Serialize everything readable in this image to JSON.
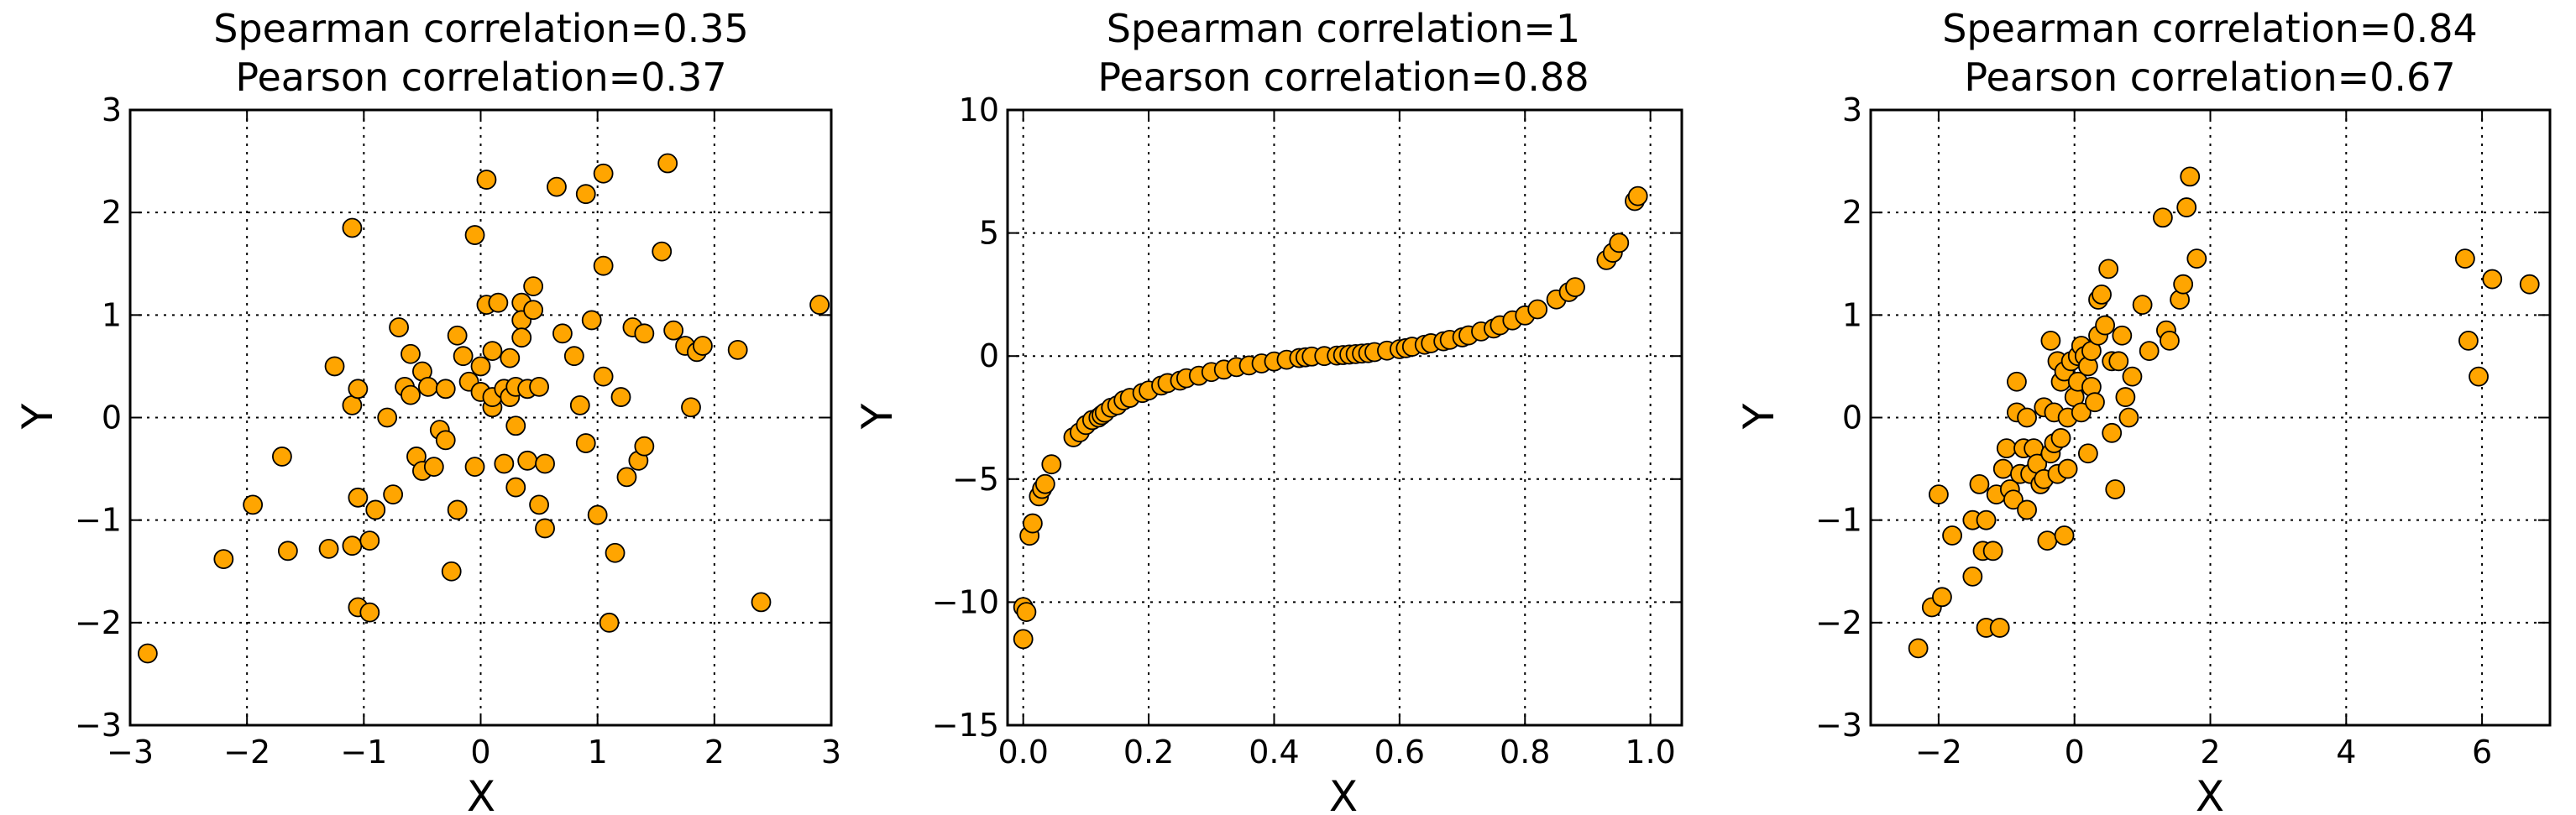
{
  "colors": {
    "marker_fill": "#ffa500",
    "marker_edge": "#000000",
    "grid": "#000000",
    "background": "#ffffff"
  },
  "chart_data": [
    {
      "type": "scatter",
      "title": [
        "Spearman correlation=0.35",
        "Pearson correlation=0.37"
      ],
      "xlabel": "X",
      "ylabel": "Y",
      "xlim": [
        -3,
        3
      ],
      "ylim": [
        -3,
        3
      ],
      "xticks": [
        -3,
        -2,
        -1,
        0,
        1,
        2,
        3
      ],
      "xtick_labels": [
        "−3",
        "−2",
        "−1",
        "0",
        "1",
        "2",
        "3"
      ],
      "yticks": [
        -3,
        -2,
        -1,
        0,
        1,
        2,
        3
      ],
      "ytick_labels": [
        "−3",
        "−2",
        "−1",
        "0",
        "1",
        "2",
        "3"
      ],
      "grid": true,
      "x": [
        -2.85,
        -2.2,
        -1.95,
        -1.7,
        -1.65,
        -1.3,
        -1.25,
        -1.1,
        -1.1,
        -1.05,
        -1.05,
        -1.1,
        -1.05,
        -0.95,
        -0.95,
        -0.9,
        -0.8,
        -0.75,
        -0.7,
        -0.65,
        -0.6,
        -0.6,
        -0.55,
        -0.5,
        -0.5,
        -0.45,
        -0.4,
        -0.35,
        -0.3,
        -0.3,
        -0.25,
        -0.2,
        -0.2,
        -0.15,
        -0.1,
        -0.05,
        -0.05,
        0.0,
        0.0,
        0.05,
        0.05,
        0.1,
        0.1,
        0.1,
        0.15,
        0.2,
        0.2,
        0.25,
        0.25,
        0.3,
        0.3,
        0.3,
        0.35,
        0.35,
        0.35,
        0.4,
        0.4,
        0.45,
        0.45,
        0.5,
        0.5,
        0.55,
        0.55,
        0.65,
        0.7,
        0.8,
        0.85,
        0.9,
        0.9,
        0.95,
        1.0,
        1.05,
        1.05,
        1.05,
        1.1,
        1.15,
        1.2,
        1.25,
        1.3,
        1.35,
        1.4,
        1.4,
        1.55,
        1.6,
        1.65,
        1.75,
        1.8,
        1.85,
        1.9,
        2.2,
        2.4,
        2.9
      ],
      "y": [
        -2.3,
        -1.38,
        -0.85,
        -0.38,
        -1.3,
        -1.28,
        0.5,
        0.12,
        1.85,
        -0.78,
        0.28,
        -1.25,
        -1.85,
        -1.2,
        -1.9,
        -0.9,
        0.0,
        -0.75,
        0.88,
        0.3,
        0.62,
        0.22,
        -0.38,
        -0.52,
        0.45,
        0.3,
        -0.48,
        -0.12,
        0.28,
        -0.22,
        -1.5,
        0.8,
        -0.9,
        0.6,
        0.35,
        -0.48,
        1.78,
        0.5,
        0.25,
        1.1,
        2.32,
        0.1,
        0.65,
        0.2,
        1.12,
        -0.45,
        0.28,
        0.58,
        0.2,
        -0.68,
        0.3,
        -0.08,
        1.12,
        0.95,
        0.78,
        0.28,
        -0.42,
        1.05,
        1.28,
        0.3,
        -0.85,
        -1.08,
        -0.45,
        2.25,
        0.82,
        0.6,
        0.12,
        -0.25,
        2.18,
        0.95,
        -0.95,
        2.38,
        1.48,
        0.4,
        -2.0,
        -1.32,
        0.2,
        -0.58,
        0.88,
        -0.42,
        -0.28,
        0.82,
        1.62,
        2.48,
        0.85,
        0.7,
        0.1,
        0.64,
        0.7,
        0.66,
        -1.8,
        1.1
      ]
    },
    {
      "type": "scatter",
      "title": [
        "Spearman correlation=1",
        "Pearson correlation=0.88"
      ],
      "xlabel": "X",
      "ylabel": "Y",
      "xlim": [
        -0.025,
        1.05
      ],
      "ylim": [
        -15,
        10
      ],
      "xticks": [
        0.0,
        0.2,
        0.4,
        0.6,
        0.8,
        1.0
      ],
      "xtick_labels": [
        "0.0",
        "0.2",
        "0.4",
        "0.6",
        "0.8",
        "1.0"
      ],
      "yticks": [
        -15,
        -10,
        -5,
        0,
        5,
        10
      ],
      "ytick_labels": [
        "−15",
        "−10",
        "−5",
        "0",
        "5",
        "10"
      ],
      "grid": true,
      "x": [
        0.0,
        0.0,
        0.005,
        0.01,
        0.015,
        0.025,
        0.03,
        0.035,
        0.045,
        0.08,
        0.09,
        0.1,
        0.11,
        0.12,
        0.125,
        0.13,
        0.14,
        0.15,
        0.16,
        0.17,
        0.19,
        0.2,
        0.22,
        0.23,
        0.25,
        0.26,
        0.28,
        0.3,
        0.32,
        0.34,
        0.36,
        0.38,
        0.4,
        0.42,
        0.44,
        0.45,
        0.46,
        0.48,
        0.5,
        0.51,
        0.52,
        0.53,
        0.54,
        0.55,
        0.56,
        0.58,
        0.6,
        0.61,
        0.62,
        0.64,
        0.65,
        0.67,
        0.68,
        0.7,
        0.71,
        0.73,
        0.75,
        0.76,
        0.78,
        0.8,
        0.82,
        0.85,
        0.87,
        0.88,
        0.93,
        0.94,
        0.95,
        0.975,
        0.98
      ],
      "y": [
        -11.5,
        -10.2,
        -10.4,
        -7.3,
        -6.8,
        -5.7,
        -5.4,
        -5.2,
        -4.4,
        -3.3,
        -3.1,
        -2.8,
        -2.6,
        -2.5,
        -2.4,
        -2.3,
        -2.1,
        -2.0,
        -1.8,
        -1.7,
        -1.5,
        -1.4,
        -1.2,
        -1.1,
        -1.0,
        -0.9,
        -0.8,
        -0.65,
        -0.55,
        -0.45,
        -0.38,
        -0.3,
        -0.22,
        -0.15,
        -0.08,
        -0.05,
        -0.02,
        0.0,
        0.02,
        0.04,
        0.06,
        0.08,
        0.1,
        0.12,
        0.16,
        0.22,
        0.28,
        0.32,
        0.38,
        0.46,
        0.52,
        0.6,
        0.66,
        0.76,
        0.84,
        1.0,
        1.12,
        1.25,
        1.45,
        1.65,
        1.9,
        2.3,
        2.6,
        2.8,
        3.9,
        4.2,
        4.6,
        6.3,
        6.5
      ]
    },
    {
      "type": "scatter",
      "title": [
        "Spearman correlation=0.84",
        "Pearson correlation=0.67"
      ],
      "xlabel": "X",
      "ylabel": "Y",
      "xlim": [
        -3,
        7
      ],
      "ylim": [
        -3,
        3
      ],
      "xticks": [
        -2,
        0,
        2,
        4,
        6
      ],
      "xtick_labels": [
        "−2",
        "0",
        "2",
        "4",
        "6"
      ],
      "yticks": [
        -3,
        -2,
        -1,
        0,
        1,
        2,
        3
      ],
      "ytick_labels": [
        "−3",
        "−2",
        "−1",
        "0",
        "1",
        "2",
        "3"
      ],
      "grid": true,
      "x": [
        -2.3,
        -2.1,
        -2.0,
        -1.95,
        -1.8,
        -1.5,
        -1.5,
        -1.4,
        -1.35,
        -1.3,
        -1.3,
        -1.2,
        -1.15,
        -1.1,
        -1.05,
        -1.0,
        -0.95,
        -0.9,
        -0.85,
        -0.85,
        -0.8,
        -0.75,
        -0.7,
        -0.7,
        -0.65,
        -0.6,
        -0.55,
        -0.5,
        -0.45,
        -0.45,
        -0.4,
        -0.35,
        -0.35,
        -0.3,
        -0.3,
        -0.25,
        -0.25,
        -0.2,
        -0.2,
        -0.15,
        -0.15,
        -0.1,
        -0.1,
        -0.05,
        0.0,
        0.05,
        0.05,
        0.1,
        0.1,
        0.15,
        0.2,
        0.2,
        0.25,
        0.25,
        0.3,
        0.35,
        0.35,
        0.4,
        0.45,
        0.5,
        0.55,
        0.55,
        0.6,
        0.65,
        0.7,
        0.75,
        0.8,
        0.85,
        1.0,
        1.1,
        1.3,
        1.35,
        1.4,
        1.55,
        1.6,
        1.65,
        1.7,
        1.8,
        5.75,
        5.8,
        5.95,
        6.15,
        6.7
      ],
      "y": [
        -2.25,
        -1.85,
        -0.75,
        -1.75,
        -1.15,
        -1.55,
        -1.0,
        -0.65,
        -1.3,
        -2.05,
        -1.0,
        -1.3,
        -0.75,
        -2.05,
        -0.5,
        -0.3,
        -0.7,
        -0.8,
        0.05,
        0.35,
        -0.55,
        -0.3,
        0.0,
        -0.9,
        -0.55,
        -0.3,
        -0.45,
        -0.65,
        -0.6,
        0.1,
        -1.2,
        -0.35,
        0.75,
        -0.25,
        0.05,
        -0.55,
        0.55,
        -0.2,
        0.35,
        -1.15,
        0.45,
        0.0,
        -0.5,
        0.55,
        0.2,
        0.35,
        0.6,
        0.05,
        0.7,
        0.6,
        -0.35,
        0.5,
        0.3,
        0.65,
        0.15,
        1.15,
        0.8,
        1.2,
        0.9,
        1.45,
        0.55,
        -0.15,
        -0.7,
        0.55,
        0.8,
        0.2,
        0.0,
        0.4,
        1.1,
        0.65,
        1.95,
        0.85,
        0.75,
        1.15,
        1.3,
        2.05,
        2.35,
        1.55,
        1.55,
        0.75,
        0.4,
        1.35,
        1.3
      ]
    }
  ]
}
